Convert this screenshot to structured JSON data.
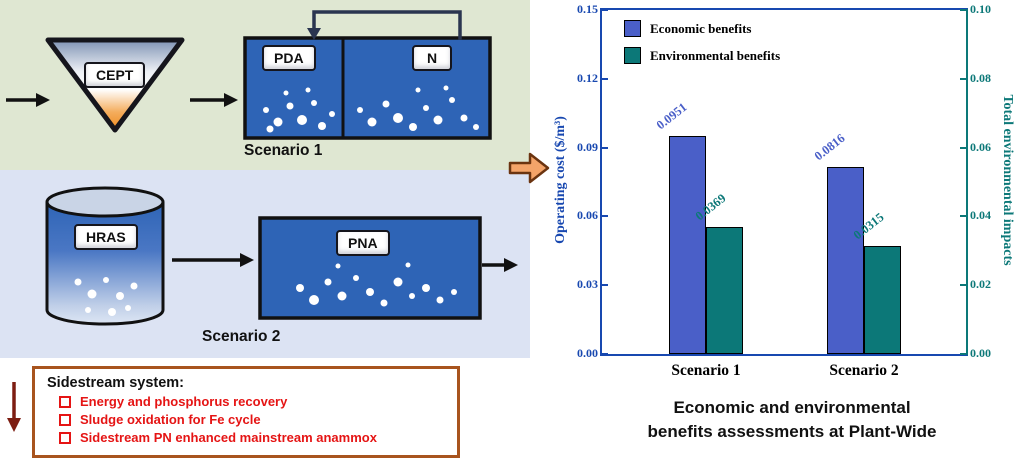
{
  "diagram": {
    "scenario1": {
      "label": "Scenario 1",
      "cept": "CEPT",
      "pda": "PDA",
      "n": "N"
    },
    "scenario2": {
      "label": "Scenario 2",
      "hras": "HRAS",
      "pna": "PNA"
    },
    "sidestream": {
      "title": "Sidestream system:",
      "items": [
        "Energy and phosphorus recovery",
        "Sludge oxidation for Fe cycle",
        "Sidestream PN enhanced mainstream anammox"
      ]
    }
  },
  "colors": {
    "tank_blue": "#2e64b6",
    "scenario1_bg": "#dfe7d2",
    "scenario2_bg": "#dce3f3",
    "sidestream_border": "#a8541e",
    "sidestream_text": "#e51414",
    "block_arrow": "#f4a469",
    "economic_bar": "#4a5fc8",
    "environmental_bar": "#0c7878"
  },
  "chart_data": {
    "type": "bar",
    "categories": [
      "Scenario 1",
      "Scenario 2"
    ],
    "series": [
      {
        "name": "Economic benefits",
        "axis": "left",
        "color": "#4a5fc8",
        "values": [
          0.0951,
          0.0816
        ],
        "labels": [
          "0.0951",
          "0.0816"
        ]
      },
      {
        "name": "Environmental benefits",
        "axis": "right",
        "color": "#0c7878",
        "values": [
          0.0369,
          0.0315
        ],
        "labels": [
          "0.0369",
          "0.0315"
        ]
      }
    ],
    "left_axis": {
      "label": "Operating cost ($/m³)",
      "min": 0,
      "max": 0.15,
      "ticks": [
        "0.00",
        "0.03",
        "0.06",
        "0.09",
        "0.12",
        "0.15"
      ],
      "color": "#1848b0"
    },
    "right_axis": {
      "label": "Total environmental impacts",
      "min": 0,
      "max": 0.1,
      "ticks": [
        "0.00",
        "0.02",
        "0.04",
        "0.06",
        "0.08",
        "0.10"
      ],
      "color": "#0c7878"
    },
    "legend_position": "top-left",
    "grid": false,
    "caption_lines": [
      "Economic and environmental",
      "benefits assessments at Plant-Wide"
    ]
  }
}
